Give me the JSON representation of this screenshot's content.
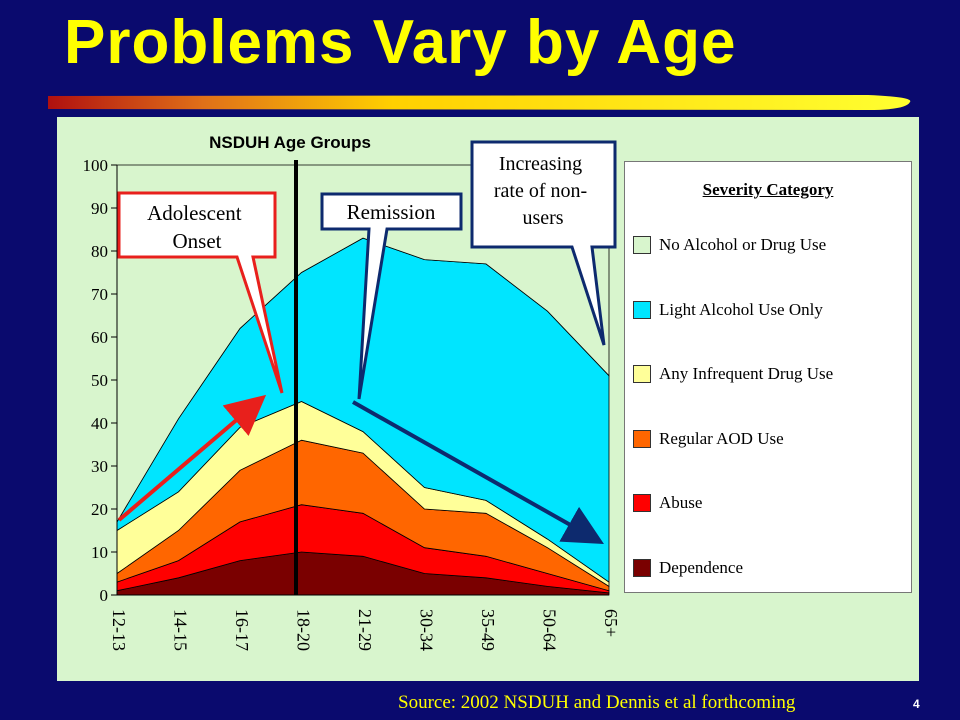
{
  "slide": {
    "title": "Problems Vary by Age",
    "source": "Source: 2002 NSDUH and Dennis et al forthcoming",
    "page_number": "4"
  },
  "colors": {
    "background": "#0a0a6e",
    "title": "#ffff00",
    "panel": "#d8f5cd"
  },
  "chart_data": {
    "type": "area",
    "stacked": true,
    "title": "NSDUH Age Groups",
    "categories": [
      "12-13",
      "14-15",
      "16-17",
      "18-20",
      "21-29",
      "30-34",
      "35-49",
      "50-64",
      "65+"
    ],
    "ylim": [
      0,
      100
    ],
    "yticks": [
      0,
      10,
      20,
      30,
      40,
      50,
      60,
      70,
      80,
      90,
      100
    ],
    "legend_title": "Severity Category",
    "legend_position": "right",
    "series": [
      {
        "name": "Dependence",
        "color": "#7a0000",
        "values": [
          1,
          4,
          8,
          10,
          9,
          5,
          4,
          2,
          0.5
        ]
      },
      {
        "name": "Abuse",
        "color": "#ff0000",
        "values": [
          2,
          4,
          9,
          11,
          10,
          6,
          5,
          3,
          0.5
        ]
      },
      {
        "name": "Regular AOD Use",
        "color": "#ff6600",
        "values": [
          2,
          7,
          12,
          15,
          14,
          9,
          10,
          6,
          1
        ]
      },
      {
        "name": "Any Infrequent Drug Use",
        "color": "#ffff99",
        "values": [
          10,
          9,
          10,
          9,
          5,
          5,
          3,
          2,
          1
        ]
      },
      {
        "name": "Light Alcohol Use Only",
        "color": "#00e5ff",
        "values": [
          2,
          17,
          23,
          30,
          45,
          53,
          55,
          53,
          48
        ]
      },
      {
        "name": "No Alcohol or Drug Use",
        "color": "#d8f5cd",
        "values": [
          83,
          59,
          38,
          25,
          17,
          22,
          23,
          34,
          49
        ]
      }
    ],
    "vertical_line_at": "18-20",
    "annotations": [
      {
        "text": "Adolescent Onset",
        "type": "callout",
        "color": "#ff0000"
      },
      {
        "text": "Remission",
        "type": "callout",
        "color": "#0a2a6e"
      },
      {
        "text": "Increasing rate of non-users",
        "type": "callout",
        "color": "#0a2a6e"
      }
    ]
  }
}
